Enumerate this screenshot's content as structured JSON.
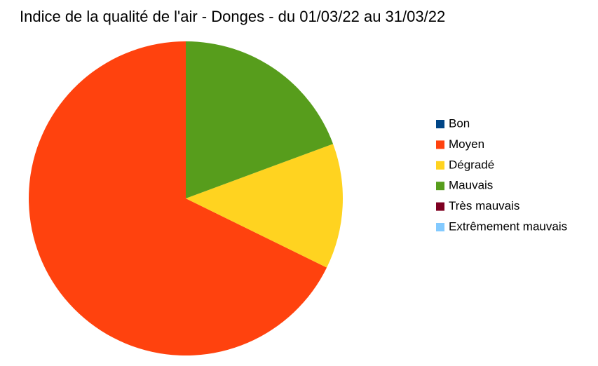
{
  "chart_data": {
    "type": "pie",
    "title": "Indice de la qualité de l'air - Donges - du 01/03/22 au 31/03/22",
    "categories": [
      "Bon",
      "Moyen",
      "Dégradé",
      "Mauvais",
      "Très mauvais",
      "Extrêmement mauvais"
    ],
    "values": [
      0,
      21,
      4,
      6,
      0,
      0
    ],
    "colors": [
      "#004586",
      "#ff420e",
      "#ffd320",
      "#579d1c",
      "#7e0021",
      "#83caff"
    ],
    "legend": "right"
  }
}
